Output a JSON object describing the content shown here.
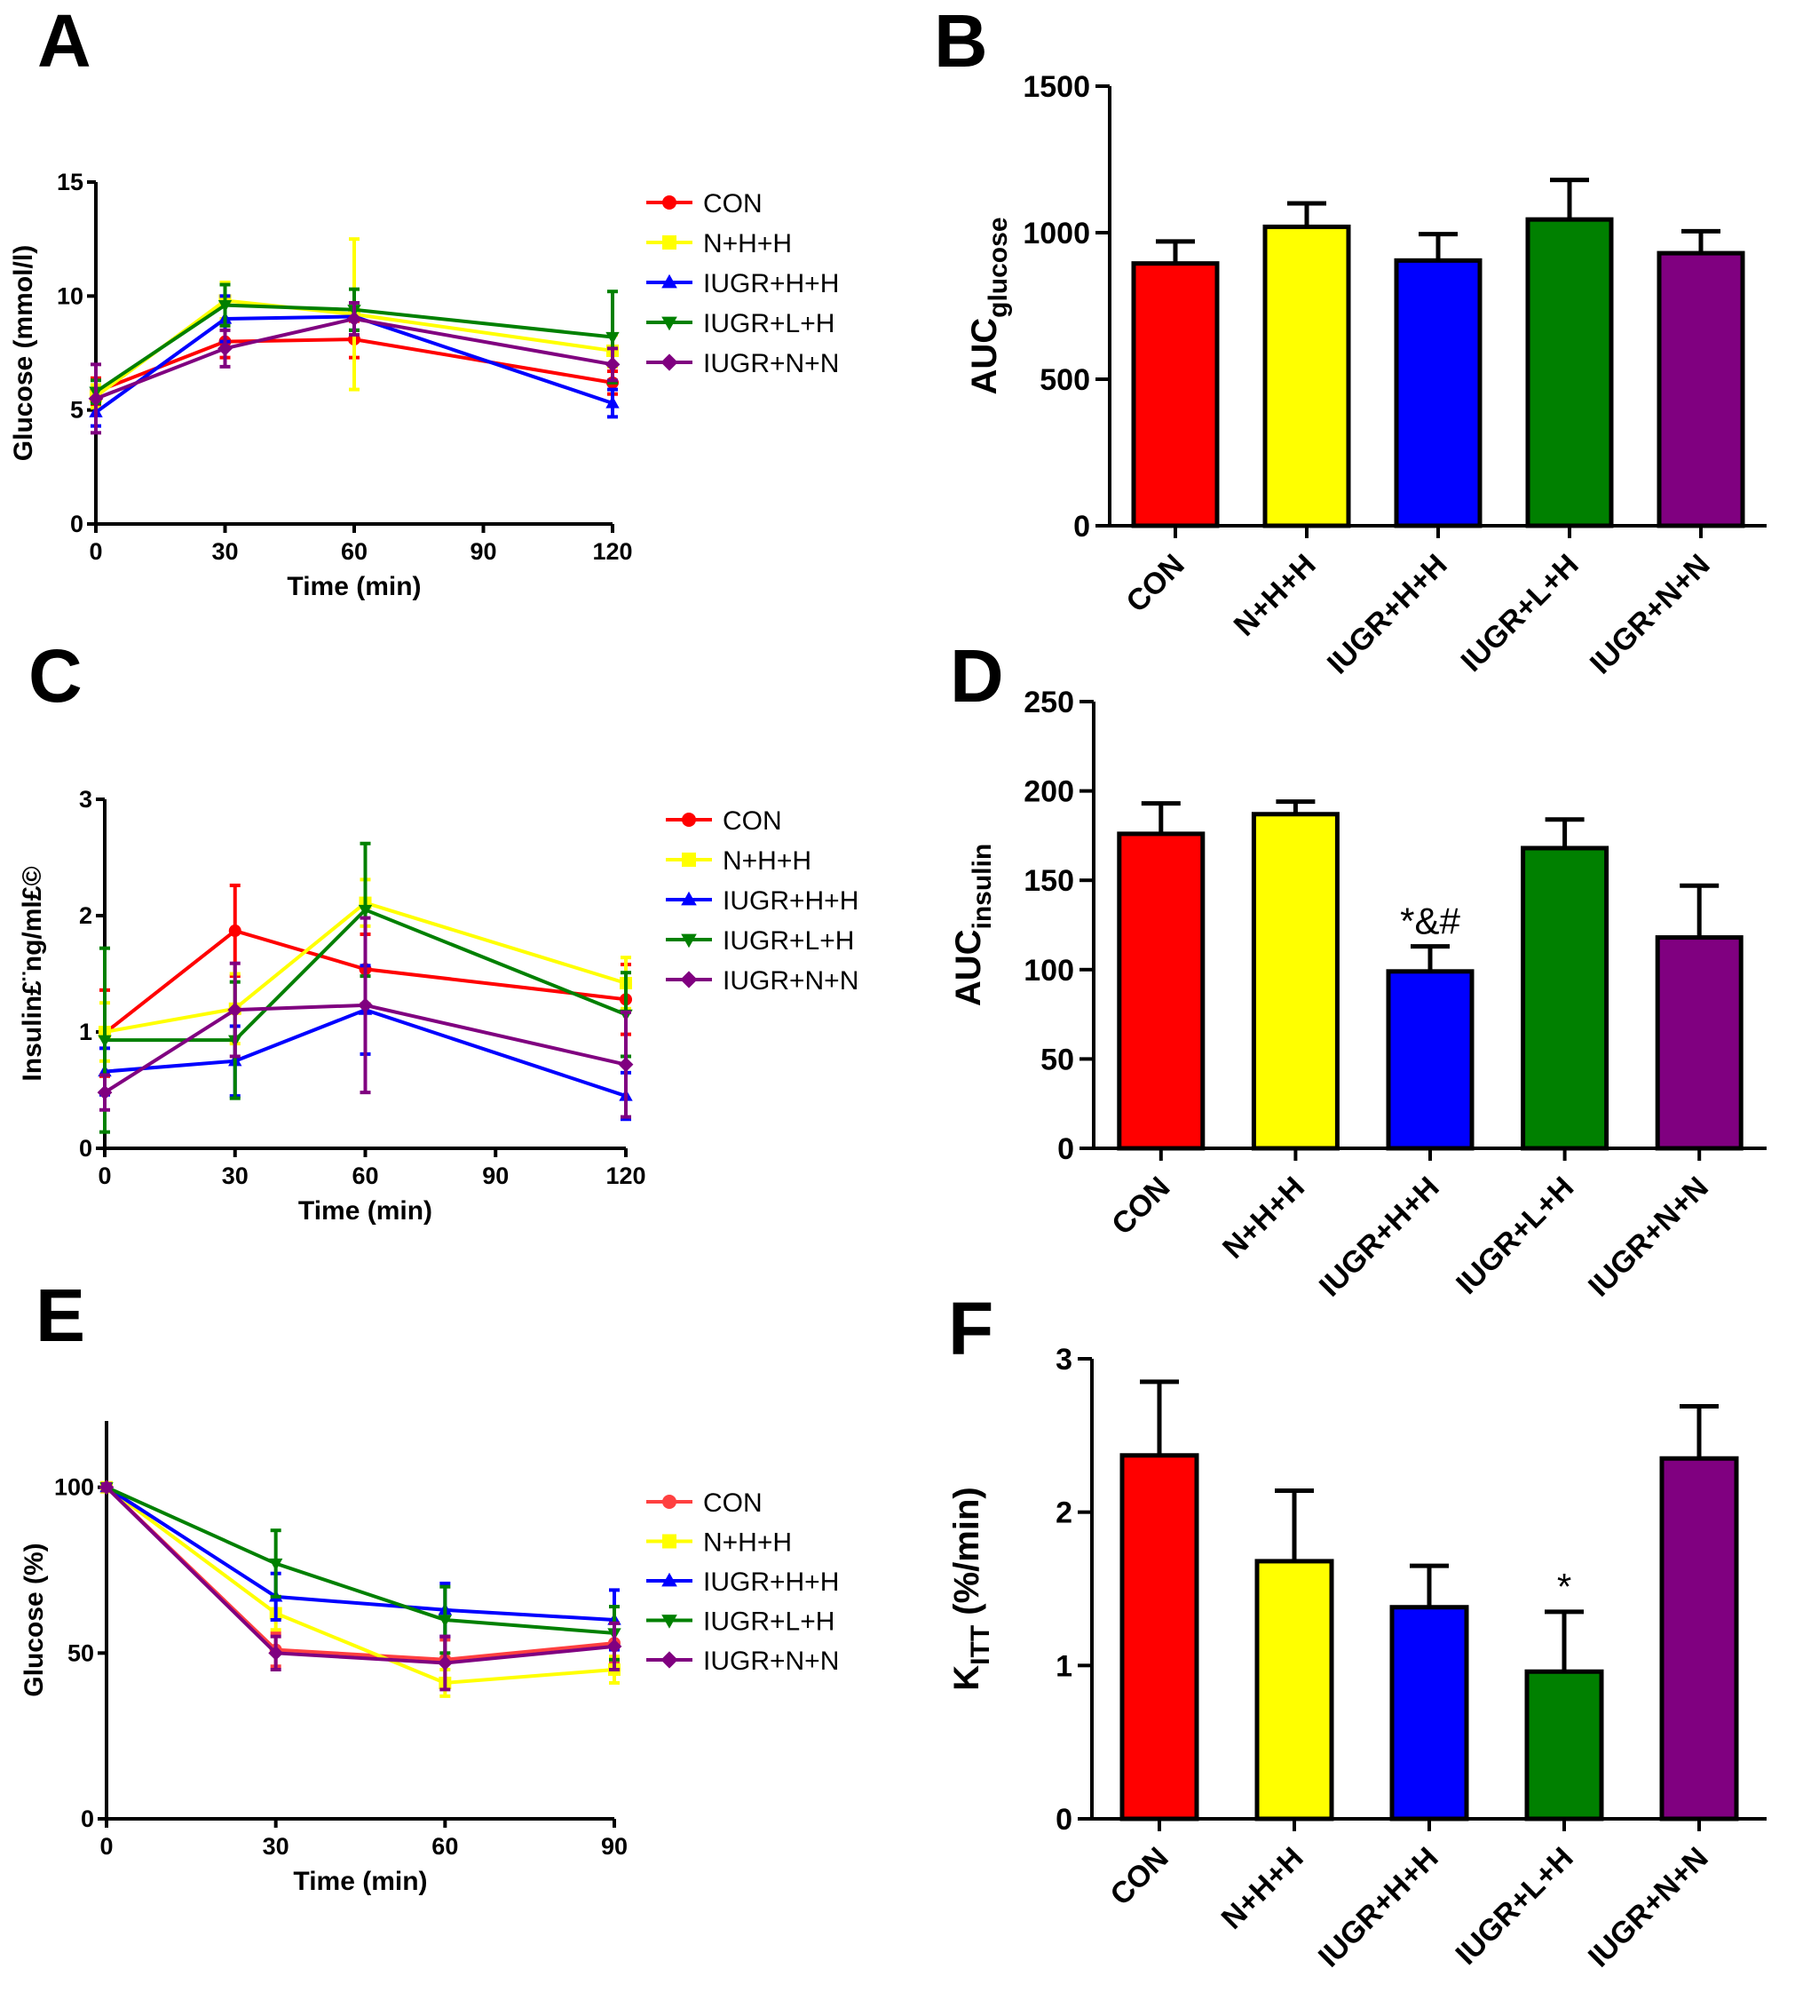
{
  "chart_data": [
    {
      "id": "A",
      "panel_label": "A",
      "type": "line",
      "xlabel": "Time (min)",
      "ylabel": "Glucose (mmol/l)",
      "xlim": [
        0,
        120
      ],
      "ylim": [
        0,
        15
      ],
      "xticks": [
        0,
        30,
        60,
        90,
        120
      ],
      "yticks": [
        0,
        5,
        10,
        15
      ],
      "x": [
        0,
        30,
        60,
        120
      ],
      "series": [
        {
          "name": "CON",
          "color": "#ff0000",
          "marker": "circle",
          "values": [
            5.8,
            8.0,
            8.1,
            6.2
          ],
          "errors": [
            0.6,
            0.7,
            0.8,
            0.5
          ]
        },
        {
          "name": "N+H+H",
          "color": "#ffff00",
          "marker": "square",
          "values": [
            5.6,
            9.8,
            9.2,
            7.6
          ],
          "errors": [
            0.5,
            0.8,
            3.3,
            0.7
          ]
        },
        {
          "name": "IUGR+H+H",
          "color": "#0000ff",
          "marker": "triangle-up",
          "values": [
            4.9,
            9.0,
            9.1,
            5.3
          ],
          "errors": [
            0.6,
            1.0,
            0.6,
            0.6
          ]
        },
        {
          "name": "IUGR+L+H",
          "color": "#008000",
          "marker": "triangle-down",
          "values": [
            5.8,
            9.6,
            9.4,
            8.2
          ],
          "errors": [
            0.5,
            0.9,
            0.9,
            2.0
          ]
        },
        {
          "name": "IUGR+N+N",
          "color": "#800080",
          "marker": "diamond",
          "values": [
            5.5,
            7.7,
            9.0,
            7.0
          ],
          "errors": [
            1.5,
            0.8,
            0.7,
            0.7
          ]
        }
      ]
    },
    {
      "id": "B",
      "panel_label": "B",
      "type": "bar",
      "ylabel": "AUC",
      "ylabel_sub": "glucose",
      "ylim": [
        0,
        1500
      ],
      "yticks": [
        0,
        500,
        1000,
        1500
      ],
      "categories": [
        "CON",
        "N+H+H",
        "IUGR+H+H",
        "IUGR+L+H",
        "IUGR+N+N"
      ],
      "values": [
        895,
        1020,
        905,
        1045,
        930
      ],
      "errors": [
        75,
        80,
        90,
        135,
        75
      ],
      "colors": [
        "#ff0000",
        "#ffff00",
        "#0000ff",
        "#008000",
        "#800080"
      ],
      "annotations": [
        "",
        "",
        "",
        "",
        ""
      ]
    },
    {
      "id": "C",
      "panel_label": "C",
      "type": "line",
      "xlabel": "Time (min)",
      "ylabel": "Insulin£¨ng/ml£©",
      "xlim": [
        0,
        120
      ],
      "ylim": [
        0,
        3
      ],
      "xticks": [
        0,
        30,
        60,
        90,
        120
      ],
      "yticks": [
        0,
        1,
        2,
        3
      ],
      "x": [
        0,
        30,
        60,
        120
      ],
      "series": [
        {
          "name": "CON",
          "color": "#ff0000",
          "marker": "circle",
          "values": [
            0.99,
            1.87,
            1.54,
            1.28
          ],
          "errors": [
            0.37,
            0.39,
            0.3,
            0.3
          ]
        },
        {
          "name": "N+H+H",
          "color": "#ffff00",
          "marker": "square",
          "values": [
            1.0,
            1.2,
            2.11,
            1.42
          ],
          "errors": [
            0.25,
            0.3,
            0.2,
            0.22
          ]
        },
        {
          "name": "IUGR+H+H",
          "color": "#0000ff",
          "marker": "triangle-up",
          "values": [
            0.66,
            0.75,
            1.19,
            0.45
          ],
          "errors": [
            0.2,
            0.3,
            0.38,
            0.2
          ]
        },
        {
          "name": "IUGR+L+H",
          "color": "#008000",
          "marker": "triangle-down",
          "values": [
            0.93,
            0.93,
            2.05,
            1.15
          ],
          "errors": [
            0.79,
            0.5,
            0.57,
            0.36
          ]
        },
        {
          "name": "IUGR+N+N",
          "color": "#800080",
          "marker": "diamond",
          "values": [
            0.48,
            1.19,
            1.23,
            0.72
          ],
          "errors": [
            0.15,
            0.4,
            0.75,
            0.45
          ]
        }
      ]
    },
    {
      "id": "D",
      "panel_label": "D",
      "type": "bar",
      "ylabel": "AUC",
      "ylabel_sub": "insulin",
      "ylim": [
        0,
        250
      ],
      "yticks": [
        0,
        50,
        100,
        150,
        200,
        250
      ],
      "categories": [
        "CON",
        "N+H+H",
        "IUGR+H+H",
        "IUGR+L+H",
        "IUGR+N+N"
      ],
      "values": [
        176,
        187,
        99,
        168,
        118
      ],
      "errors": [
        17,
        7,
        14,
        16,
        29
      ],
      "colors": [
        "#ff0000",
        "#ffff00",
        "#0000ff",
        "#008000",
        "#800080"
      ],
      "annotations": [
        "",
        "",
        "*&#",
        "",
        ""
      ]
    },
    {
      "id": "E",
      "panel_label": "E",
      "type": "line",
      "xlabel": "Time (min)",
      "ylabel": "Glucose (%)",
      "xlim": [
        0,
        90
      ],
      "ylim": [
        0,
        120
      ],
      "xticks": [
        0,
        30,
        60,
        90
      ],
      "yticks": [
        0,
        50,
        100
      ],
      "x": [
        0,
        30,
        60,
        90
      ],
      "series": [
        {
          "name": "CON",
          "color": "#ff4040",
          "marker": "circle",
          "values": [
            100,
            51,
            48,
            53
          ],
          "errors": [
            1,
            5,
            6,
            6
          ]
        },
        {
          "name": "N+H+H",
          "color": "#ffff00",
          "marker": "square",
          "values": [
            100,
            62,
            41,
            45
          ],
          "errors": [
            1,
            5,
            4,
            4
          ]
        },
        {
          "name": "IUGR+H+H",
          "color": "#0000ff",
          "marker": "triangle-up",
          "values": [
            100,
            67,
            63,
            60
          ],
          "errors": [
            1,
            7,
            8,
            9
          ]
        },
        {
          "name": "IUGR+L+H",
          "color": "#008000",
          "marker": "triangle-down",
          "values": [
            100,
            77,
            60,
            56
          ],
          "errors": [
            1,
            10,
            10,
            8
          ]
        },
        {
          "name": "IUGR+N+N",
          "color": "#800080",
          "marker": "diamond",
          "values": [
            100,
            50,
            47,
            52
          ],
          "errors": [
            1,
            5,
            8,
            7
          ]
        }
      ]
    },
    {
      "id": "F",
      "panel_label": "F",
      "type": "bar",
      "ylabel": "K",
      "ylabel_sub": "ITT",
      "ylabel_suffix": " (%/min)",
      "ylim": [
        0,
        3
      ],
      "yticks": [
        0,
        1,
        2,
        3
      ],
      "categories": [
        "CON",
        "N+H+H",
        "IUGR+H+H",
        "IUGR+L+H",
        "IUGR+N+N"
      ],
      "values": [
        2.37,
        1.68,
        1.38,
        0.96,
        2.35
      ],
      "errors": [
        0.48,
        0.46,
        0.27,
        0.39,
        0.34
      ],
      "colors": [
        "#ff0000",
        "#ffff00",
        "#0000ff",
        "#008000",
        "#800080"
      ],
      "annotations": [
        "",
        "",
        "",
        "*",
        ""
      ]
    }
  ]
}
